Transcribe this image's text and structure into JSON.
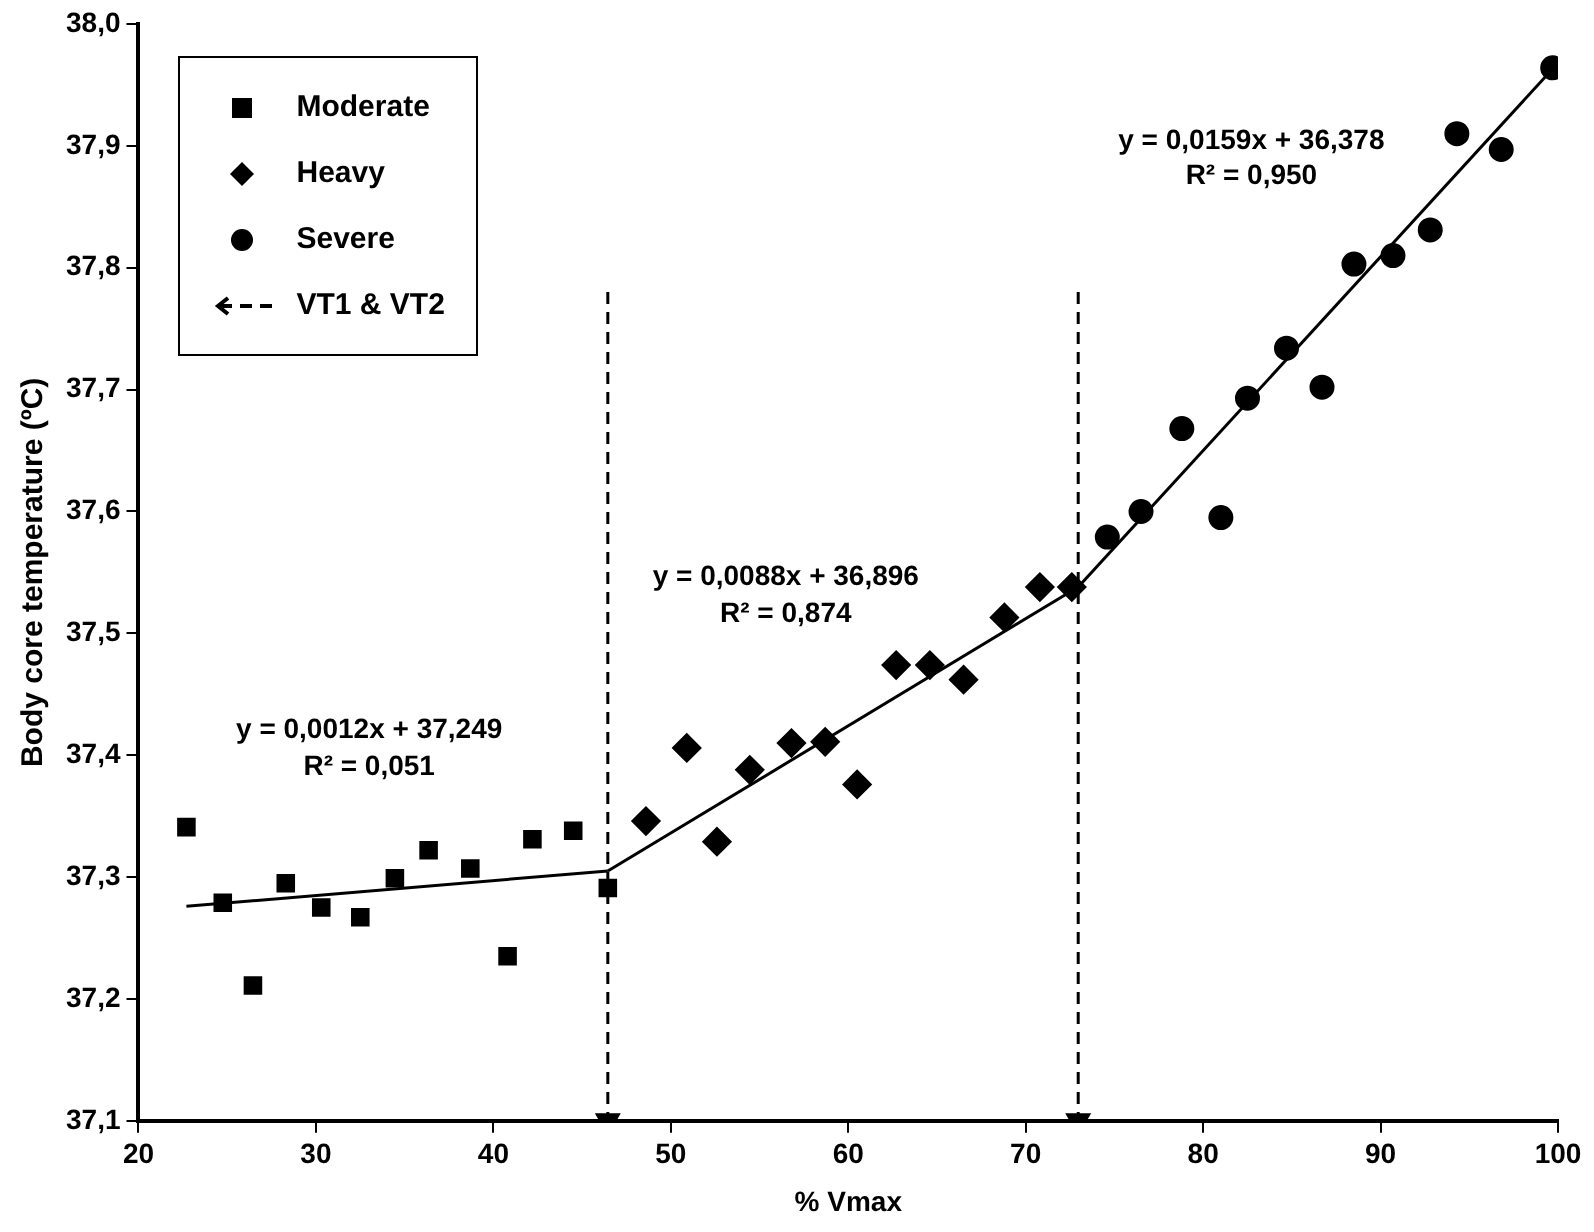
{
  "chart_data": {
    "type": "scatter",
    "xlabel": "% Vmax",
    "ylabel": "Body core temperature (ºC)",
    "xlim": [
      20,
      100
    ],
    "xticks": [
      20,
      30,
      40,
      50,
      60,
      70,
      80,
      90,
      100
    ],
    "ylim": [
      37.1,
      38.0
    ],
    "yticks": [
      {
        "value": 37.1,
        "label": "37,1"
      },
      {
        "value": 37.2,
        "label": "37,2"
      },
      {
        "value": 37.3,
        "label": "37,3"
      },
      {
        "value": 37.4,
        "label": "37,4"
      },
      {
        "value": 37.5,
        "label": "37,5"
      },
      {
        "value": 37.6,
        "label": "37,6"
      },
      {
        "value": 37.7,
        "label": "37,7"
      },
      {
        "value": 37.8,
        "label": "37,8"
      },
      {
        "value": 37.9,
        "label": "37,9"
      },
      {
        "value": 38.0,
        "label": "38,0"
      }
    ],
    "grid": false,
    "legend": "top left",
    "series": [
      {
        "name": "Moderate",
        "color": "#000000",
        "marker": "square",
        "x": [
          22.7,
          24.75,
          26.45,
          28.3,
          30.3,
          32.5,
          34.45,
          36.35,
          38.7,
          40.8,
          42.2,
          44.5,
          46.45
        ],
        "values": [
          37.341,
          37.279,
          37.211,
          37.295,
          37.275,
          37.267,
          37.299,
          37.322,
          37.307,
          37.235,
          37.331,
          37.338,
          37.291
        ]
      },
      {
        "name": "Heavy",
        "color": "#000000",
        "marker": "diamond",
        "x": [
          48.6,
          50.9,
          52.6,
          54.45,
          56.8,
          58.7,
          60.5,
          62.7,
          64.6,
          66.5,
          68.8,
          70.8,
          72.6
        ],
        "values": [
          37.346,
          37.406,
          37.329,
          37.388,
          37.41,
          37.411,
          37.376,
          37.474,
          37.474,
          37.462,
          37.513,
          37.538,
          37.538
        ]
      },
      {
        "name": "Severe",
        "color": "#000000",
        "marker": "circle",
        "x": [
          74.6,
          76.5,
          78.8,
          81.0,
          82.5,
          84.7,
          86.7,
          88.5,
          90.7,
          92.8,
          94.3,
          96.8,
          99.7
        ],
        "values": [
          37.579,
          37.6,
          37.668,
          37.595,
          37.693,
          37.734,
          37.702,
          37.803,
          37.81,
          37.831,
          37.91,
          37.897,
          37.964
        ]
      },
      {
        "type": "line",
        "color": "#000000",
        "marker": "none",
        "line_style": "solid",
        "x": [
          22.7,
          46.45
        ],
        "values": [
          37.276,
          37.305
        ]
      },
      {
        "type": "line",
        "color": "#000000",
        "marker": "none",
        "line_style": "solid",
        "x": [
          46.45,
          72.96
        ],
        "values": [
          37.305,
          37.538
        ]
      },
      {
        "type": "line",
        "color": "#000000",
        "marker": "none",
        "line_style": "solid",
        "x": [
          72.96,
          100
        ],
        "values": [
          37.538,
          37.968
        ]
      },
      {
        "name": "VT1 & VT2",
        "type": "line",
        "color": "#000000",
        "marker": "triangle",
        "line_style": "dashed",
        "x": [
          46.45,
          46.45,
          null,
          72.96,
          72.96
        ],
        "values": [
          37.78,
          37.1,
          null,
          37.78,
          37.1
        ]
      }
    ],
    "annotations": [
      "y = 0,0012x + 37,249",
      "R² = 0,051",
      "y = 0,0088x + 36,896",
      "R² = 0,874",
      "y = 0,0159x + 36,378",
      "R² = 0,950"
    ]
  }
}
